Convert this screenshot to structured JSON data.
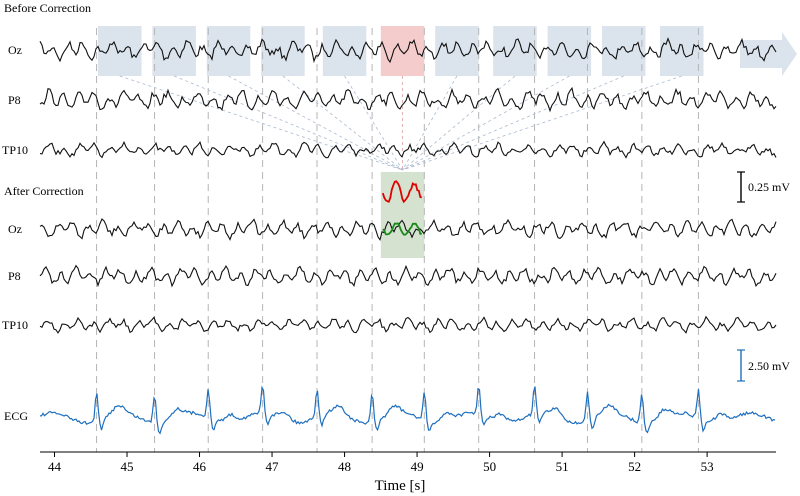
{
  "chart_data": {
    "type": "line",
    "xlabel": "Time [s]",
    "xlim": [
      43.8,
      53.95
    ],
    "x_ticks": [
      44,
      45,
      46,
      47,
      48,
      49,
      50,
      51,
      52,
      53
    ],
    "panels": [
      {
        "title": "Before Correction",
        "title_color": "#c00000",
        "channels": [
          "Oz",
          "P8",
          "TP10"
        ]
      },
      {
        "title": "After Correction",
        "title_color": "#2e7d1f",
        "channels": [
          "Oz",
          "P8",
          "TP10"
        ]
      }
    ],
    "ecg": {
      "name": "ECG",
      "color": "#1f6fbf"
    },
    "r_peak_times": [
      44.58,
      45.38,
      46.12,
      46.87,
      47.62,
      48.38,
      49.1,
      49.85,
      50.62,
      51.35,
      52.1,
      52.88
    ],
    "highlight_windows": [
      {
        "start": 44.6,
        "end": 45.2
      },
      {
        "start": 45.35,
        "end": 45.95
      },
      {
        "start": 46.1,
        "end": 46.7
      },
      {
        "start": 46.85,
        "end": 47.45
      },
      {
        "start": 47.7,
        "end": 48.3
      },
      {
        "start": 48.5,
        "end": 49.1,
        "selected": true
      },
      {
        "start": 49.25,
        "end": 49.85
      },
      {
        "start": 50.05,
        "end": 50.65
      },
      {
        "start": 50.8,
        "end": 51.4
      },
      {
        "start": 51.55,
        "end": 52.15
      },
      {
        "start": 52.35,
        "end": 52.95
      }
    ],
    "scale_bars": [
      {
        "label": "0.25  mV",
        "applies_to": "EEG"
      },
      {
        "label": "2.50  mV",
        "applies_to": "ECG",
        "color": "#1f6fbf"
      }
    ],
    "inset": {
      "series": [
        {
          "color": "#e00000"
        },
        {
          "color": "#1a8a1a"
        }
      ]
    },
    "grid": "dashed vertical lines at each ECG R-peak"
  }
}
